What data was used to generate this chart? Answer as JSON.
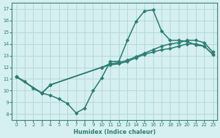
{
  "title": "",
  "xlabel": "Humidex (Indice chaleur)",
  "ylabel": "",
  "xlim": [
    -0.5,
    23.5
  ],
  "ylim": [
    7.5,
    17.5
  ],
  "xticks": [
    0,
    1,
    2,
    3,
    4,
    5,
    6,
    7,
    8,
    9,
    10,
    11,
    12,
    13,
    14,
    15,
    16,
    17,
    18,
    19,
    20,
    21,
    22,
    23
  ],
  "yticks": [
    8,
    9,
    10,
    11,
    12,
    13,
    14,
    15,
    16,
    17
  ],
  "bg_color": "#d6eff0",
  "grid_color": "#b0d8da",
  "line_color": "#2e7d72",
  "lines": [
    {
      "x": [
        0,
        1,
        2,
        3,
        4,
        5,
        6,
        7,
        8,
        9,
        10,
        11,
        12,
        13,
        14,
        15,
        16,
        17,
        18,
        19,
        20,
        21,
        22,
        23
      ],
      "y": [
        11.2,
        10.8,
        10.2,
        9.8,
        9.6,
        9.3,
        8.9,
        8.1,
        8.5,
        10.0,
        11.1,
        12.5,
        12.5,
        14.3,
        15.9,
        16.8,
        16.9,
        15.1,
        14.3,
        14.3,
        14.2,
        13.9,
        13.8,
        13.1
      ],
      "marker": "D",
      "lw": 1.2
    },
    {
      "x": [
        0,
        3,
        4,
        10,
        11,
        12,
        13,
        14,
        15,
        16,
        17,
        18,
        19,
        20,
        21,
        22,
        23
      ],
      "y": [
        11.2,
        9.8,
        10.5,
        12.0,
        12.2,
        12.3,
        12.5,
        12.8,
        13.1,
        13.3,
        13.5,
        13.6,
        13.8,
        14.0,
        14.0,
        13.8,
        13.1
      ],
      "marker": "D",
      "lw": 1.2
    },
    {
      "x": [
        0,
        3,
        4,
        10,
        11,
        12,
        13,
        14,
        15,
        16,
        17,
        18,
        19,
        20,
        21,
        22,
        23
      ],
      "y": [
        11.2,
        9.8,
        10.5,
        12.0,
        12.3,
        12.4,
        12.6,
        12.9,
        13.2,
        13.5,
        13.8,
        14.0,
        14.1,
        14.3,
        14.3,
        14.1,
        13.3
      ],
      "marker": "D",
      "lw": 1.2
    }
  ]
}
